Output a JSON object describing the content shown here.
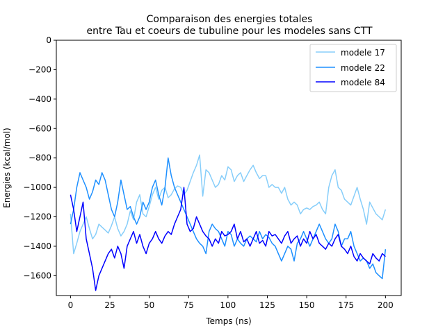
{
  "chart_data": {
    "type": "line",
    "title": "Comparaison des energies totales\nentre Tau et coeurs de tubuline pour les modeles sans CTT",
    "title_lines": [
      "Comparaison des energies totales",
      "entre Tau et coeurs de tubuline pour les modeles sans CTT"
    ],
    "xlabel": "Temps (ns)",
    "ylabel": "Energies (kcal/mol)",
    "xlim": [
      -9,
      210
    ],
    "ylim": [
      -1735,
      0
    ],
    "xticks": [
      0,
      25,
      50,
      75,
      100,
      125,
      150,
      175,
      200
    ],
    "yticks": [
      0,
      -200,
      -400,
      -600,
      -800,
      -1000,
      -1200,
      -1400,
      -1600
    ],
    "xtick_labels": [
      "0",
      "25",
      "50",
      "75",
      "100",
      "125",
      "150",
      "175",
      "200"
    ],
    "ytick_labels": [
      "0",
      "−200",
      "−400",
      "−600",
      "−800",
      "−1000",
      "−1200",
      "−1400",
      "−1600"
    ],
    "grid": false,
    "legend_position": "top-right",
    "series": [
      {
        "name": "modele 17",
        "color": "#87cefa",
        "x": [
          0,
          2,
          4,
          6,
          8,
          10,
          12,
          14,
          16,
          18,
          20,
          22,
          24,
          26,
          28,
          30,
          32,
          34,
          36,
          38,
          40,
          42,
          44,
          46,
          48,
          50,
          52,
          54,
          56,
          58,
          60,
          62,
          64,
          66,
          68,
          70,
          72,
          74,
          76,
          78,
          80,
          82,
          84,
          86,
          88,
          90,
          92,
          94,
          96,
          98,
          100,
          102,
          104,
          106,
          108,
          110,
          112,
          114,
          116,
          118,
          120,
          122,
          124,
          126,
          128,
          130,
          132,
          134,
          136,
          138,
          140,
          142,
          144,
          146,
          148,
          150,
          152,
          154,
          156,
          158,
          160,
          162,
          164,
          166,
          168,
          170,
          172,
          174,
          176,
          178,
          180,
          182,
          184,
          186,
          188,
          190,
          192,
          194,
          196,
          198,
          200
        ],
        "y": [
          -1180,
          -1450,
          -1380,
          -1300,
          -1250,
          -1200,
          -1280,
          -1350,
          -1320,
          -1250,
          -1270,
          -1290,
          -1310,
          -1260,
          -1200,
          -1280,
          -1330,
          -1300,
          -1250,
          -1160,
          -1220,
          -1100,
          -1050,
          -1180,
          -1200,
          -1130,
          -1050,
          -1000,
          -1080,
          -1020,
          -1000,
          -1070,
          -1050,
          -1010,
          -990,
          -1000,
          -1050,
          -1020,
          -960,
          -900,
          -850,
          -780,
          -1060,
          -880,
          -900,
          -950,
          -1000,
          -980,
          -920,
          -950,
          -860,
          -880,
          -960,
          -920,
          -900,
          -960,
          -920,
          -880,
          -850,
          -900,
          -940,
          -920,
          -920,
          -1000,
          -980,
          -1000,
          -1000,
          -1040,
          -1000,
          -1080,
          -1120,
          -1100,
          -1120,
          -1180,
          -1150,
          -1140,
          -1150,
          -1130,
          -1120,
          -1100,
          -1150,
          -1180,
          -1000,
          -920,
          -880,
          -1000,
          -1020,
          -1080,
          -1100,
          -1120,
          -1060,
          -1000,
          -1080,
          -1150,
          -1250,
          -1100,
          -1140,
          -1180,
          -1200,
          -1220,
          -1150
        ]
      },
      {
        "name": "modele 22",
        "color": "#1e90ff",
        "x": [
          0,
          2,
          4,
          6,
          8,
          10,
          12,
          14,
          16,
          18,
          20,
          22,
          24,
          26,
          28,
          30,
          32,
          34,
          36,
          38,
          40,
          42,
          44,
          46,
          48,
          50,
          52,
          54,
          56,
          58,
          60,
          62,
          64,
          66,
          68,
          70,
          72,
          74,
          76,
          78,
          80,
          82,
          84,
          86,
          88,
          90,
          92,
          94,
          96,
          98,
          100,
          102,
          104,
          106,
          108,
          110,
          112,
          114,
          116,
          118,
          120,
          122,
          124,
          126,
          128,
          130,
          132,
          134,
          136,
          138,
          140,
          142,
          144,
          146,
          148,
          150,
          152,
          154,
          156,
          158,
          160,
          162,
          164,
          166,
          168,
          170,
          172,
          174,
          176,
          178,
          180,
          182,
          184,
          186,
          188,
          190,
          192,
          194,
          196,
          198,
          200
        ],
        "y": [
          -1250,
          -1150,
          -1000,
          -900,
          -950,
          -1000,
          -1080,
          -1030,
          -950,
          -980,
          -900,
          -950,
          -1050,
          -1150,
          -1200,
          -1100,
          -950,
          -1050,
          -1150,
          -1130,
          -1200,
          -1250,
          -1200,
          -1100,
          -1150,
          -1100,
          -1000,
          -950,
          -1050,
          -1120,
          -1000,
          -800,
          -920,
          -1000,
          -1050,
          -1100,
          -1150,
          -1200,
          -1250,
          -1300,
          -1350,
          -1380,
          -1400,
          -1450,
          -1300,
          -1250,
          -1280,
          -1300,
          -1350,
          -1400,
          -1300,
          -1320,
          -1400,
          -1350,
          -1380,
          -1400,
          -1350,
          -1330,
          -1350,
          -1370,
          -1300,
          -1350,
          -1320,
          -1340,
          -1380,
          -1400,
          -1450,
          -1500,
          -1450,
          -1400,
          -1420,
          -1500,
          -1380,
          -1350,
          -1300,
          -1350,
          -1400,
          -1350,
          -1300,
          -1250,
          -1300,
          -1350,
          -1380,
          -1350,
          -1250,
          -1300,
          -1400,
          -1350,
          -1350,
          -1300,
          -1400,
          -1450,
          -1500,
          -1480,
          -1500,
          -1550,
          -1520,
          -1580,
          -1600,
          -1620,
          -1420
        ]
      },
      {
        "name": "modele 84",
        "color": "#0000ff",
        "x": [
          0,
          2,
          4,
          6,
          8,
          10,
          12,
          14,
          16,
          18,
          20,
          22,
          24,
          26,
          28,
          30,
          32,
          34,
          36,
          38,
          40,
          42,
          44,
          46,
          48,
          50,
          52,
          54,
          56,
          58,
          60,
          62,
          64,
          66,
          68,
          70,
          72,
          74,
          76,
          78,
          80,
          82,
          84,
          86,
          88,
          90,
          92,
          94,
          96,
          98,
          100,
          102,
          104,
          106,
          108,
          110,
          112,
          114,
          116,
          118,
          120,
          122,
          124,
          126,
          128,
          130,
          132,
          134,
          136,
          138,
          140,
          142,
          144,
          146,
          148,
          150,
          152,
          154,
          156,
          158,
          160,
          162,
          164,
          166,
          168,
          170,
          172,
          174,
          176,
          178,
          180,
          182,
          184,
          186,
          188,
          190,
          192,
          194,
          196,
          198,
          200
        ],
        "y": [
          -1050,
          -1150,
          -1300,
          -1200,
          -1100,
          -1350,
          -1450,
          -1550,
          -1700,
          -1600,
          -1550,
          -1500,
          -1450,
          -1420,
          -1480,
          -1400,
          -1450,
          -1550,
          -1400,
          -1350,
          -1300,
          -1380,
          -1320,
          -1400,
          -1450,
          -1380,
          -1350,
          -1300,
          -1350,
          -1380,
          -1330,
          -1300,
          -1320,
          -1250,
          -1200,
          -1150,
          -1000,
          -1250,
          -1300,
          -1280,
          -1200,
          -1250,
          -1300,
          -1330,
          -1350,
          -1400,
          -1350,
          -1380,
          -1300,
          -1330,
          -1320,
          -1300,
          -1250,
          -1350,
          -1300,
          -1370,
          -1350,
          -1400,
          -1350,
          -1300,
          -1380,
          -1360,
          -1400,
          -1300,
          -1330,
          -1320,
          -1350,
          -1380,
          -1330,
          -1300,
          -1380,
          -1350,
          -1330,
          -1400,
          -1350,
          -1380,
          -1300,
          -1350,
          -1320,
          -1380,
          -1400,
          -1420,
          -1380,
          -1400,
          -1350,
          -1320,
          -1400,
          -1420,
          -1450,
          -1400,
          -1470,
          -1500,
          -1450,
          -1480,
          -1500,
          -1520,
          -1450,
          -1480,
          -1500,
          -1450,
          -1470
        ]
      }
    ]
  }
}
